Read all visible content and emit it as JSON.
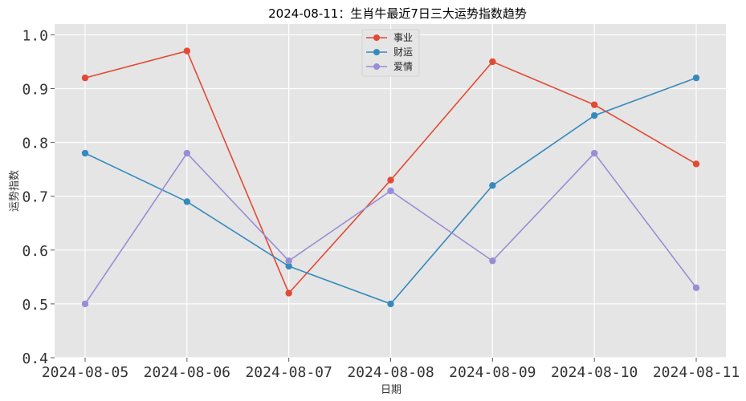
{
  "chart_data": {
    "type": "line",
    "title": "2024-08-11：生肖牛最近7日三大运势指数趋势",
    "xlabel": "日期",
    "ylabel": "运势指数",
    "categories": [
      "2024-08-05",
      "2024-08-06",
      "2024-08-07",
      "2024-08-08",
      "2024-08-09",
      "2024-08-10",
      "2024-08-11"
    ],
    "ylim": [
      0.4,
      1.02
    ],
    "yticks": [
      "0.4",
      "0.5",
      "0.6",
      "0.7",
      "0.8",
      "0.9",
      "1.0"
    ],
    "grid": true,
    "legend_position": "top-center",
    "series": [
      {
        "name": "事业",
        "color": "#E24A33",
        "values": [
          0.92,
          0.97,
          0.52,
          0.73,
          0.95,
          0.87,
          0.76
        ]
      },
      {
        "name": "财运",
        "color": "#348ABD",
        "values": [
          0.78,
          0.69,
          0.57,
          0.5,
          0.72,
          0.85,
          0.92
        ]
      },
      {
        "name": "爱情",
        "color": "#988ED5",
        "values": [
          0.5,
          0.78,
          0.58,
          0.71,
          0.58,
          0.78,
          0.53
        ]
      }
    ]
  }
}
